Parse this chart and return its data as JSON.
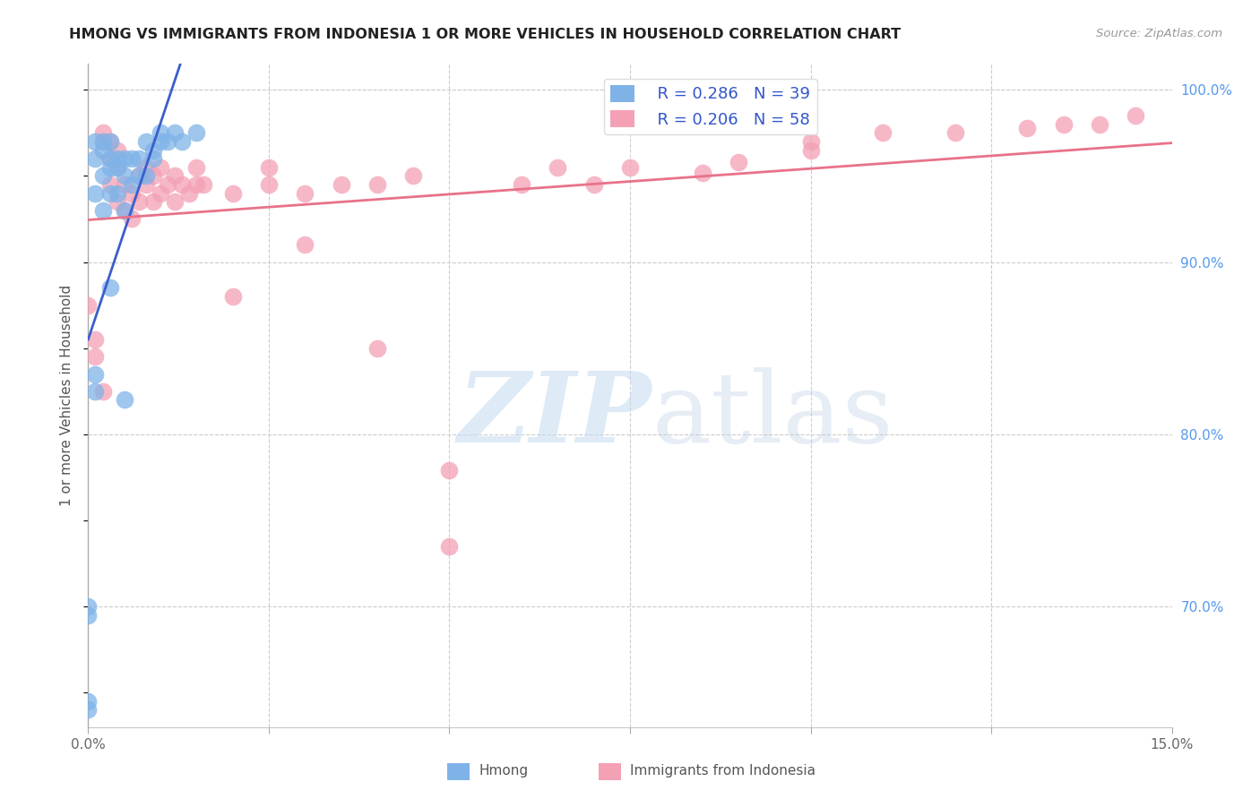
{
  "title": "HMONG VS IMMIGRANTS FROM INDONESIA 1 OR MORE VEHICLES IN HOUSEHOLD CORRELATION CHART",
  "source": "Source: ZipAtlas.com",
  "ylabel": "1 or more Vehicles in Household",
  "xlim": [
    0.0,
    0.15
  ],
  "ylim": [
    0.63,
    1.015
  ],
  "xtick_positions": [
    0.0,
    0.025,
    0.05,
    0.075,
    0.1,
    0.125,
    0.15
  ],
  "xticklabels": [
    "0.0%",
    "",
    "",
    "",
    "",
    "",
    "15.0%"
  ],
  "ytick_positions": [
    0.7,
    0.8,
    0.9,
    1.0
  ],
  "ytick_labels_right": [
    "70.0%",
    "80.0%",
    "90.0%",
    "100.0%"
  ],
  "legend_R_hmong": "R = 0.286",
  "legend_N_hmong": "N = 39",
  "legend_R_indonesia": "R = 0.206",
  "legend_N_indonesia": "N = 58",
  "hmong_color": "#7fb3e8",
  "indonesia_color": "#f4a0b5",
  "hmong_line_color": "#3a5fcd",
  "indonesia_line_color": "#e8728a",
  "background_color": "#ffffff",
  "grid_color": "#cccccc",
  "hmong_x": [
    0.0,
    0.0,
    0.0,
    0.0,
    0.001,
    0.001,
    0.001,
    0.001,
    0.001,
    0.002,
    0.002,
    0.002,
    0.002,
    0.003,
    0.003,
    0.003,
    0.003,
    0.003,
    0.004,
    0.004,
    0.004,
    0.005,
    0.005,
    0.005,
    0.005,
    0.006,
    0.006,
    0.007,
    0.007,
    0.008,
    0.008,
    0.009,
    0.009,
    0.01,
    0.01,
    0.011,
    0.012,
    0.013,
    0.015
  ],
  "hmong_y": [
    0.645,
    0.695,
    0.7,
    0.64,
    0.96,
    0.97,
    0.94,
    0.835,
    0.825,
    0.93,
    0.95,
    0.97,
    0.965,
    0.94,
    0.96,
    0.955,
    0.97,
    0.885,
    0.94,
    0.955,
    0.96,
    0.93,
    0.95,
    0.96,
    0.82,
    0.945,
    0.96,
    0.95,
    0.96,
    0.95,
    0.97,
    0.96,
    0.965,
    0.97,
    0.975,
    0.97,
    0.975,
    0.97,
    0.975
  ],
  "indonesia_x": [
    0.0,
    0.001,
    0.001,
    0.002,
    0.002,
    0.002,
    0.003,
    0.003,
    0.003,
    0.004,
    0.004,
    0.004,
    0.005,
    0.005,
    0.006,
    0.006,
    0.007,
    0.007,
    0.008,
    0.008,
    0.009,
    0.009,
    0.01,
    0.01,
    0.011,
    0.012,
    0.012,
    0.013,
    0.014,
    0.015,
    0.015,
    0.016,
    0.02,
    0.025,
    0.025,
    0.03,
    0.035,
    0.04,
    0.045,
    0.05,
    0.06,
    0.065,
    0.07,
    0.075,
    0.085,
    0.09,
    0.1,
    0.1,
    0.11,
    0.12,
    0.13,
    0.135,
    0.14,
    0.145,
    0.05,
    0.02,
    0.03,
    0.04
  ],
  "indonesia_y": [
    0.875,
    0.845,
    0.855,
    0.97,
    0.975,
    0.825,
    0.96,
    0.97,
    0.945,
    0.955,
    0.965,
    0.935,
    0.93,
    0.945,
    0.925,
    0.94,
    0.935,
    0.95,
    0.945,
    0.955,
    0.935,
    0.95,
    0.94,
    0.955,
    0.945,
    0.935,
    0.95,
    0.945,
    0.94,
    0.945,
    0.955,
    0.945,
    0.94,
    0.945,
    0.955,
    0.94,
    0.945,
    0.945,
    0.95,
    0.779,
    0.945,
    0.955,
    0.945,
    0.955,
    0.952,
    0.958,
    0.965,
    0.97,
    0.975,
    0.975,
    0.978,
    0.98,
    0.98,
    0.985,
    0.735,
    0.88,
    0.91,
    0.85
  ]
}
